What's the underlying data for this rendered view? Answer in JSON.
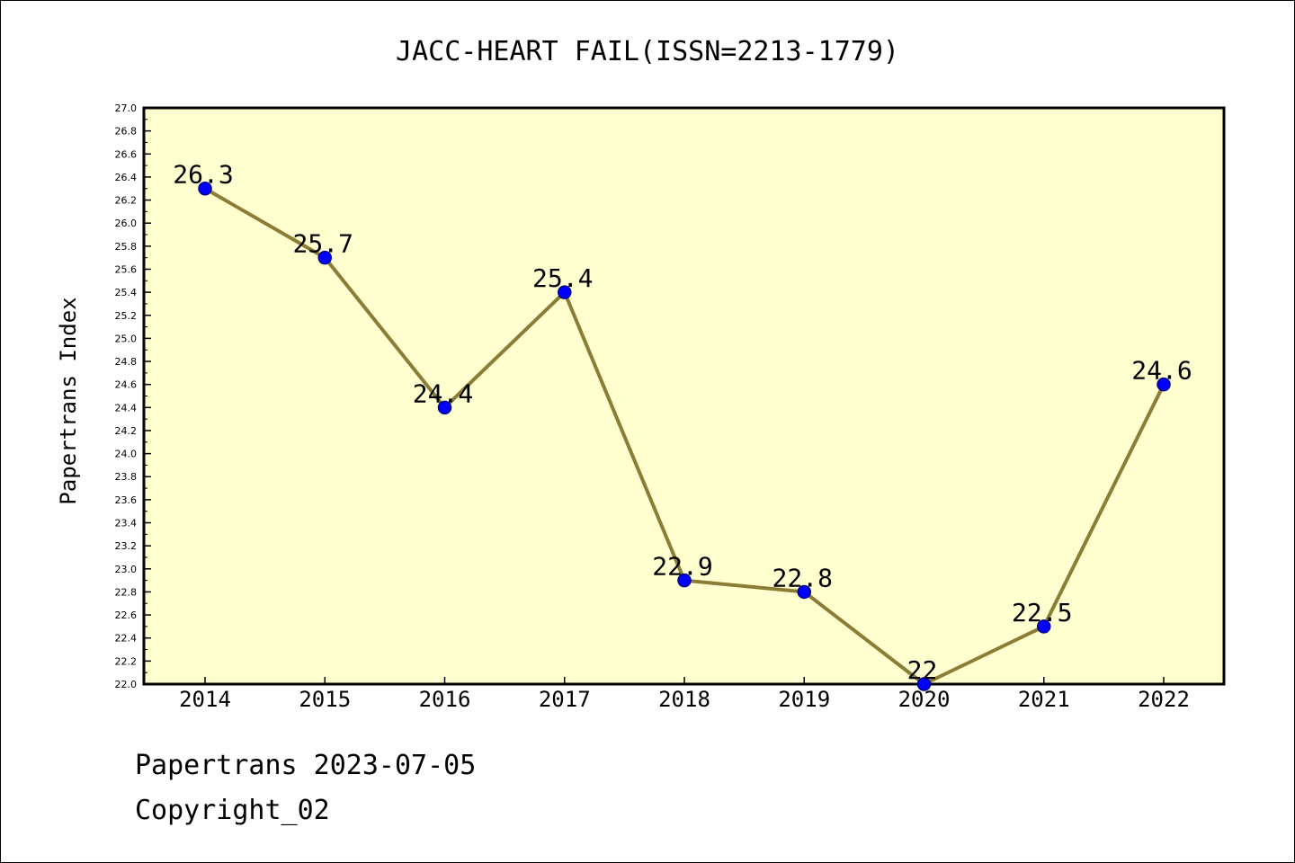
{
  "chart_data": {
    "type": "line",
    "title": "JACC-HEART FAIL(ISSN=2213-1779)",
    "xlabel": "",
    "ylabel": "Papertrans Index",
    "categories": [
      "2014",
      "2015",
      "2016",
      "2017",
      "2018",
      "2019",
      "2020",
      "2021",
      "2022"
    ],
    "series": [
      {
        "values": [
          26.3,
          25.7,
          24.4,
          25.4,
          22.9,
          22.8,
          22.0,
          22.5,
          24.6
        ],
        "labels": [
          "26.3",
          "25.7",
          "24.4",
          "25.4",
          "22.9",
          "22.8",
          "22",
          "22.5",
          "24.6"
        ]
      }
    ],
    "ylim": [
      22.0,
      27.0
    ],
    "ytick_step": 0.2,
    "grid": false,
    "legend": "none",
    "colors": {
      "plot_background": "#ffffd0",
      "line": "#8b7d36",
      "marker": "#0000ff",
      "marker_edge": "#00008b"
    }
  },
  "footer": {
    "line1": "Papertrans 2023-07-05",
    "line2": "Copyright_02"
  }
}
